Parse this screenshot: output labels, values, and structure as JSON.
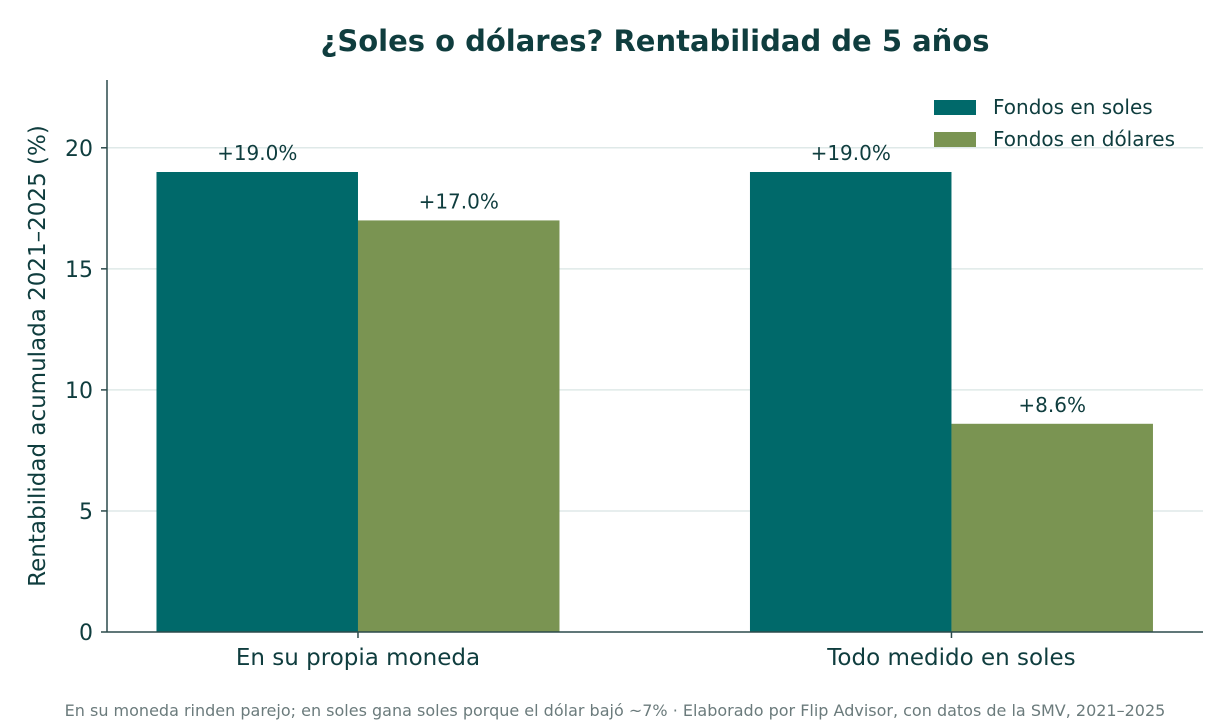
{
  "chart_data": {
    "type": "bar",
    "title": "¿Soles o dólares? Rentabilidad de 5 años",
    "ylabel": "Rentabilidad acumulada 2021–2025 (%)",
    "xlabel": "",
    "categories": [
      "En su propia moneda",
      "Todo medido en soles"
    ],
    "series": [
      {
        "name": "Fondos en soles",
        "values": [
          19.0,
          19.0
        ],
        "labels": [
          "+19.0%",
          "+19.0%"
        ],
        "color": "#00696a"
      },
      {
        "name": "Fondos en dólares",
        "values": [
          17.0,
          8.6
        ],
        "labels": [
          "+17.0%",
          "+8.6%"
        ],
        "color": "#7a9452"
      }
    ],
    "ylim": [
      0,
      22.8
    ],
    "yticks": [
      0,
      5,
      10,
      15,
      20
    ],
    "ytick_labels": [
      "0",
      "5",
      "10",
      "15",
      "20"
    ],
    "grid": "horizontal",
    "legend_position": "top-right"
  },
  "footer": "En su moneda rinden parejo; en soles gana soles porque el dólar bajó ~7% · Elaborado por Flip Advisor, con datos de la SMV, 2021–2025",
  "colors": {
    "text": "#0f3d3e",
    "axis": "#2b4a4b",
    "grid": "#dfe9e8",
    "footer": "#6b7b7c"
  }
}
